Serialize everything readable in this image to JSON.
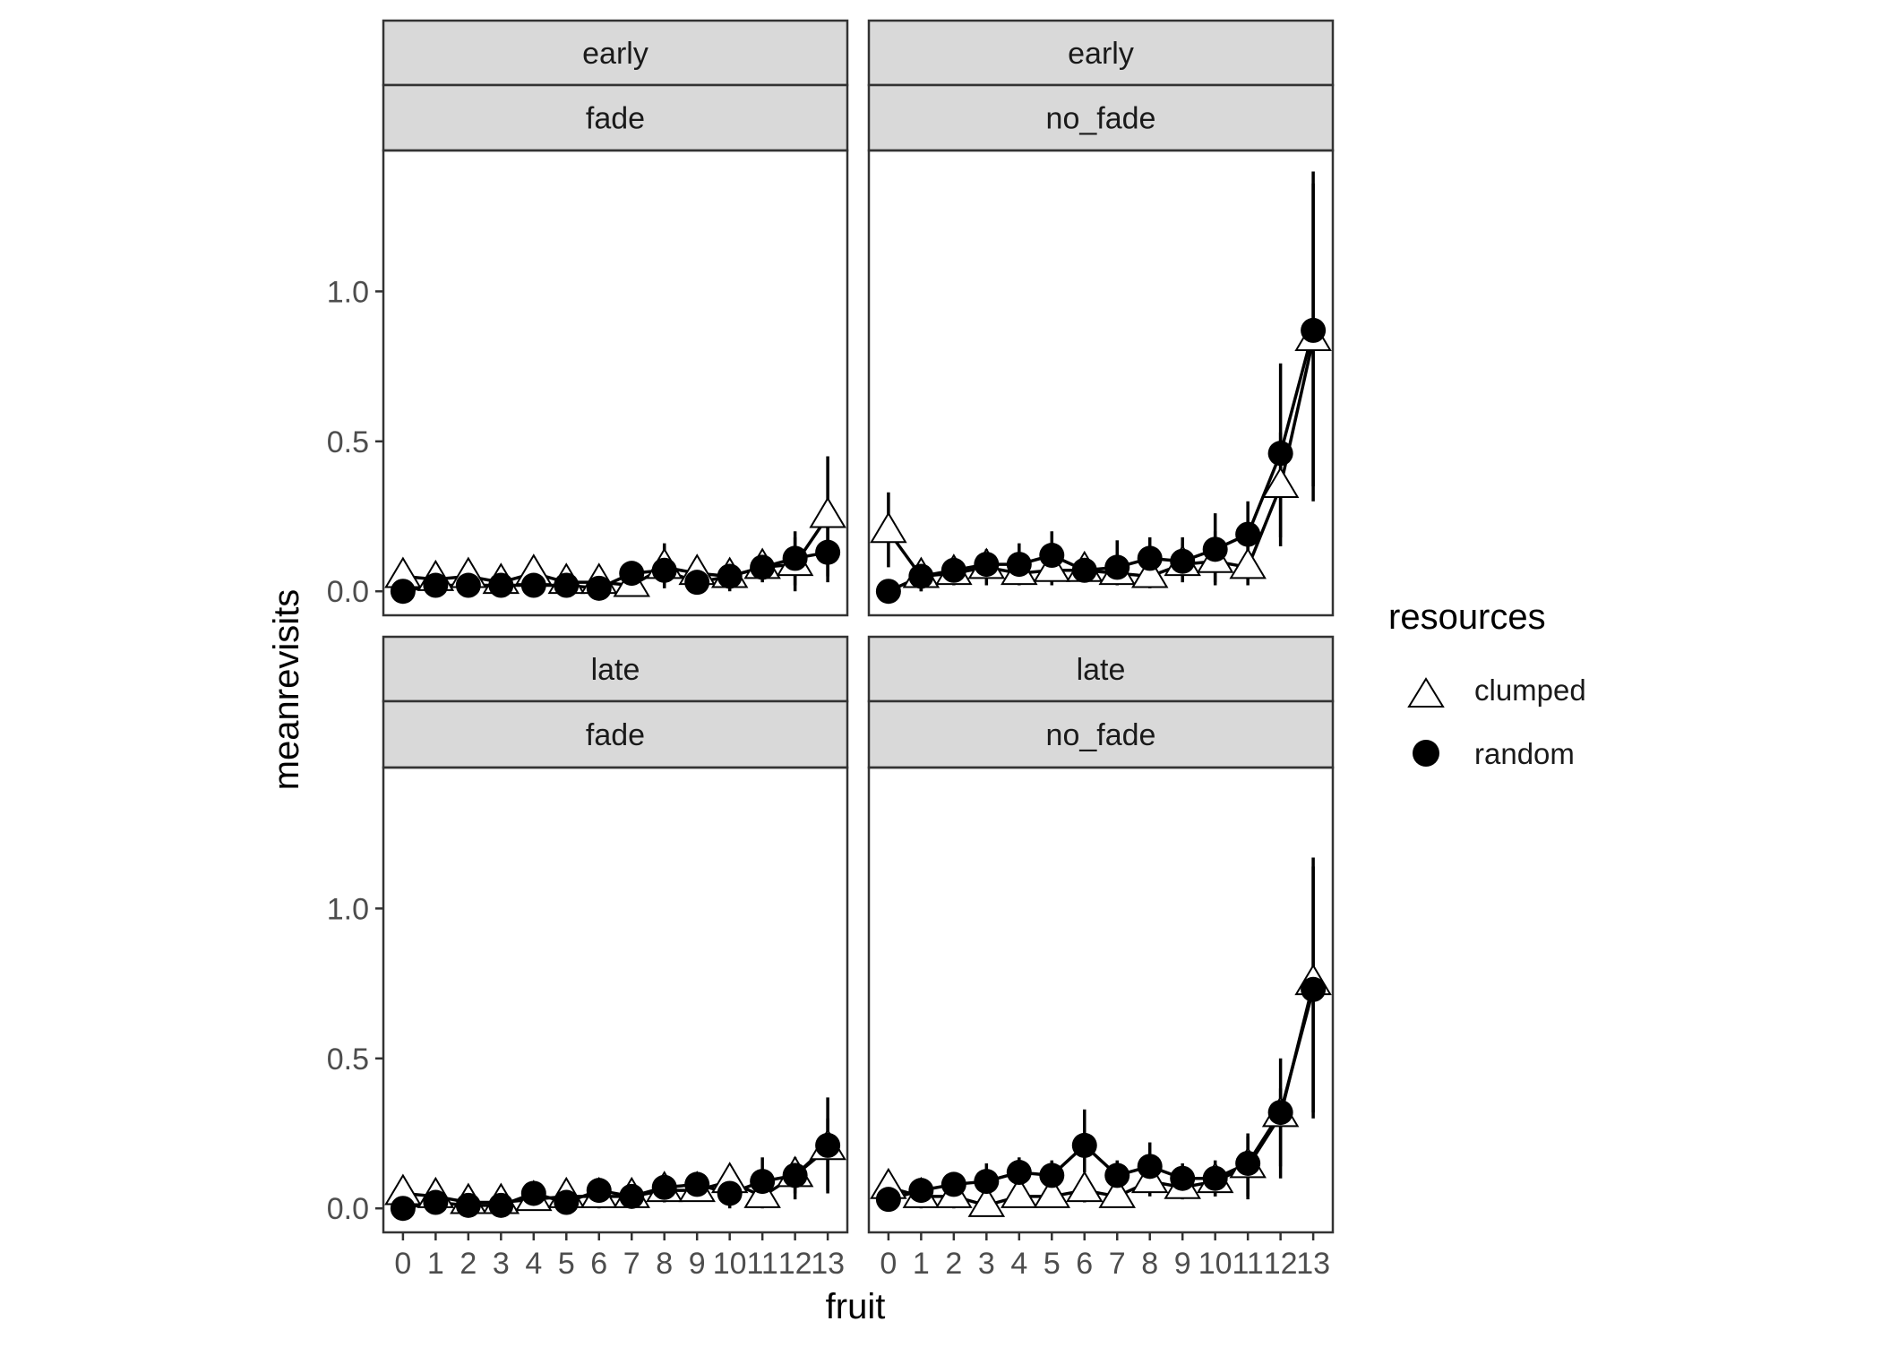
{
  "chart_data": {
    "type": "line",
    "xlabel": "fruit",
    "ylabel": "meanrevisits",
    "x": [
      0,
      1,
      2,
      3,
      4,
      5,
      6,
      7,
      8,
      9,
      10,
      11,
      12,
      13
    ],
    "xtick_labels": [
      "0",
      "1",
      "2",
      "3",
      "4",
      "5",
      "6",
      "7",
      "8",
      "9",
      "10",
      "11",
      "12",
      "13"
    ],
    "ytick_values": [
      0.0,
      0.5,
      1.0
    ],
    "ytick_labels": [
      "0.0",
      "0.5",
      "1.0"
    ],
    "ylim": [
      -0.08,
      1.47
    ],
    "xlim": [
      -0.6,
      13.6
    ],
    "grid": false,
    "legend": {
      "title": "resources",
      "placement": "right",
      "entries": [
        {
          "label": "clumped",
          "marker": "open-triangle"
        },
        {
          "label": "random",
          "marker": "filled-circle"
        }
      ]
    },
    "facets": [
      {
        "strip_top": "early",
        "strip_bottom": "fade",
        "series": [
          {
            "name": "clumped",
            "values": [
              0.05,
              0.04,
              0.05,
              0.03,
              0.06,
              0.03,
              0.03,
              0.02,
              0.08,
              0.06,
              0.05,
              0.08,
              0.09,
              0.25
            ],
            "err_lo": [
              0.0,
              0.0,
              0.0,
              0.0,
              0.0,
              0.0,
              0.0,
              0.0,
              0.02,
              0.02,
              0.01,
              0.03,
              0.0,
              0.05
            ],
            "err_hi": [
              0.08,
              0.07,
              0.08,
              0.06,
              0.1,
              0.06,
              0.06,
              0.04,
              0.15,
              0.1,
              0.08,
              0.12,
              0.18,
              0.45
            ]
          },
          {
            "name": "random",
            "values": [
              0.0,
              0.02,
              0.02,
              0.02,
              0.02,
              0.02,
              0.01,
              0.06,
              0.07,
              0.03,
              0.05,
              0.08,
              0.11,
              0.13
            ],
            "err_lo": [
              0.0,
              0.0,
              0.0,
              0.0,
              0.0,
              0.0,
              0.0,
              0.02,
              0.01,
              0.0,
              0.0,
              0.04,
              0.02,
              0.03
            ],
            "err_hi": [
              0.02,
              0.05,
              0.04,
              0.05,
              0.05,
              0.04,
              0.03,
              0.09,
              0.16,
              0.06,
              0.1,
              0.12,
              0.2,
              0.25
            ]
          }
        ]
      },
      {
        "strip_top": "early",
        "strip_bottom": "no_fade",
        "series": [
          {
            "name": "clumped",
            "values": [
              0.2,
              0.05,
              0.06,
              0.08,
              0.06,
              0.07,
              0.07,
              0.06,
              0.05,
              0.09,
              0.1,
              0.08,
              0.35,
              0.84
            ],
            "err_lo": [
              0.08,
              0.0,
              0.02,
              0.02,
              0.02,
              0.02,
              0.03,
              0.02,
              0.01,
              0.03,
              0.02,
              0.02,
              0.15,
              0.35
            ],
            "err_hi": [
              0.33,
              0.1,
              0.1,
              0.14,
              0.12,
              0.13,
              0.12,
              0.11,
              0.1,
              0.16,
              0.2,
              0.15,
              0.76,
              1.36
            ]
          },
          {
            "name": "random",
            "values": [
              0.0,
              0.05,
              0.07,
              0.09,
              0.09,
              0.12,
              0.07,
              0.08,
              0.11,
              0.1,
              0.14,
              0.19,
              0.46,
              0.87
            ],
            "err_lo": [
              0.0,
              0.0,
              0.03,
              0.05,
              0.04,
              0.07,
              0.03,
              0.03,
              0.06,
              0.05,
              0.03,
              0.08,
              0.18,
              0.3
            ],
            "err_hi": [
              0.02,
              0.09,
              0.1,
              0.12,
              0.16,
              0.2,
              0.12,
              0.17,
              0.18,
              0.18,
              0.26,
              0.3,
              0.53,
              1.4
            ]
          }
        ]
      },
      {
        "strip_top": "late",
        "strip_bottom": "fade",
        "series": [
          {
            "name": "clumped",
            "values": [
              0.05,
              0.04,
              0.02,
              0.02,
              0.03,
              0.04,
              0.04,
              0.04,
              0.06,
              0.06,
              0.09,
              0.04,
              0.11,
              0.2
            ],
            "err_lo": [
              0.0,
              0.0,
              0.0,
              0.0,
              0.0,
              0.0,
              0.0,
              0.0,
              0.02,
              0.03,
              0.04,
              0.0,
              0.05,
              0.05
            ],
            "err_hi": [
              0.08,
              0.07,
              0.05,
              0.05,
              0.06,
              0.08,
              0.08,
              0.07,
              0.1,
              0.1,
              0.13,
              0.08,
              0.16,
              0.3
            ]
          },
          {
            "name": "random",
            "values": [
              0.0,
              0.02,
              0.01,
              0.01,
              0.05,
              0.02,
              0.06,
              0.04,
              0.07,
              0.08,
              0.05,
              0.09,
              0.11,
              0.21
            ],
            "err_lo": [
              0.0,
              0.0,
              0.0,
              0.0,
              0.01,
              0.0,
              0.02,
              0.01,
              0.03,
              0.04,
              0.0,
              0.04,
              0.03,
              0.06
            ],
            "err_hi": [
              0.02,
              0.04,
              0.04,
              0.03,
              0.08,
              0.05,
              0.1,
              0.07,
              0.11,
              0.11,
              0.1,
              0.17,
              0.17,
              0.37
            ]
          }
        ]
      },
      {
        "strip_top": "late",
        "strip_bottom": "no_fade",
        "series": [
          {
            "name": "clumped",
            "values": [
              0.07,
              0.04,
              0.04,
              0.01,
              0.04,
              0.04,
              0.06,
              0.04,
              0.09,
              0.07,
              0.09,
              0.14,
              0.31,
              0.75
            ],
            "err_lo": [
              0.02,
              0.0,
              0.0,
              0.0,
              0.01,
              0.01,
              0.02,
              0.01,
              0.04,
              0.03,
              0.04,
              0.03,
              0.1,
              0.32
            ],
            "err_hi": [
              0.1,
              0.07,
              0.08,
              0.04,
              0.08,
              0.08,
              0.1,
              0.08,
              0.14,
              0.12,
              0.14,
              0.25,
              0.5,
              1.17
            ]
          },
          {
            "name": "random",
            "values": [
              0.03,
              0.06,
              0.08,
              0.09,
              0.12,
              0.11,
              0.21,
              0.11,
              0.14,
              0.1,
              0.1,
              0.15,
              0.32,
              0.73
            ],
            "err_lo": [
              0.0,
              0.02,
              0.04,
              0.05,
              0.07,
              0.06,
              0.12,
              0.06,
              0.08,
              0.05,
              0.04,
              0.04,
              0.14,
              0.3
            ],
            "err_hi": [
              0.05,
              0.09,
              0.12,
              0.15,
              0.17,
              0.16,
              0.33,
              0.16,
              0.22,
              0.15,
              0.16,
              0.24,
              0.4,
              1.14
            ]
          }
        ]
      }
    ]
  }
}
